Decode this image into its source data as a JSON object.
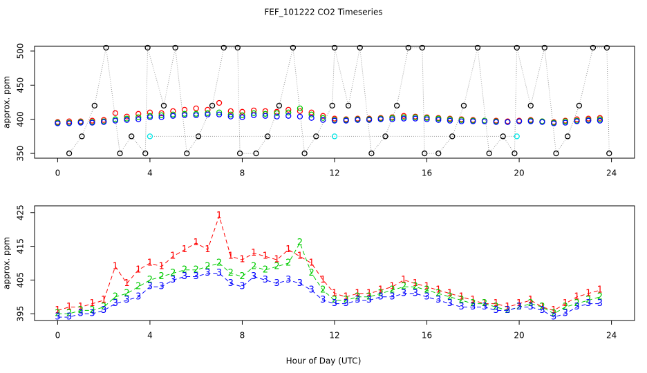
{
  "chart_data": [
    {
      "type": "scatter",
      "title": "FEF_101222  CO2 Timeseries",
      "ylabel": "approx. ppm",
      "xlim": [
        -1,
        25
      ],
      "ylim": [
        343,
        507
      ],
      "xticks": [
        0,
        4,
        8,
        12,
        16,
        20,
        24
      ],
      "yticks": [
        350,
        400,
        450,
        500
      ],
      "x": [
        0,
        0.5,
        1,
        1.5,
        2,
        2.5,
        3,
        3.5,
        4,
        4.5,
        5,
        5.5,
        6,
        6.5,
        7,
        7.5,
        8,
        8.5,
        9,
        9.5,
        10,
        10.5,
        11,
        11.5,
        12,
        12.5,
        13,
        13.5,
        14,
        14.5,
        15,
        15.5,
        16,
        16.5,
        17,
        17.5,
        18,
        18.5,
        19,
        19.5,
        20,
        20.5,
        21,
        21.5,
        22,
        22.5,
        23,
        23.5
      ],
      "series": [
        {
          "color": "#ff0000",
          "values": [
            396,
            397,
            397,
            398,
            399,
            409,
            404,
            408,
            410,
            409,
            412,
            414,
            416,
            414,
            424,
            412,
            411,
            413,
            412,
            411,
            414,
            412,
            410,
            405,
            401,
            400,
            401,
            401,
            402,
            403,
            405,
            404,
            403,
            402,
            401,
            400,
            399,
            398,
            398,
            397,
            398,
            399,
            397,
            396,
            398,
            400,
            401,
            402
          ]
        },
        {
          "color": "#00cc00",
          "values": [
            395,
            395,
            396,
            396,
            397,
            400,
            401,
            403,
            405,
            406,
            407,
            408,
            408,
            409,
            410,
            407,
            406,
            409,
            408,
            409,
            410,
            416,
            407,
            402,
            399,
            399,
            400,
            400,
            401,
            402,
            403,
            403,
            402,
            401,
            400,
            399,
            398,
            398,
            397,
            396,
            397,
            398,
            397,
            395,
            397,
            398,
            399,
            400
          ]
        },
        {
          "color": "#0000ff",
          "values": [
            394,
            394,
            395,
            395,
            396,
            398,
            399,
            400,
            403,
            403,
            405,
            406,
            406,
            407,
            407,
            404,
            403,
            406,
            405,
            404,
            405,
            404,
            402,
            399,
            398,
            398,
            399,
            399,
            400,
            400,
            401,
            401,
            400,
            399,
            398,
            397,
            397,
            397,
            396,
            396,
            397,
            397,
            396,
            394,
            395,
            397,
            398,
            398
          ]
        },
        {
          "color": "#000000",
          "x": [
            0.5,
            1.05,
            1.6,
            2.1,
            2.7,
            3.2,
            3.8,
            3.9,
            4.6,
            5.1,
            5.6,
            6.1,
            6.7,
            7.2,
            7.8,
            7.9,
            8.6,
            9.1,
            9.6,
            10.2,
            10.7,
            11.2,
            11.9,
            12,
            12.6,
            13.1,
            13.6,
            14.2,
            14.7,
            15.2,
            15.8,
            15.9,
            16.5,
            17.1,
            17.6,
            18.2,
            18.7,
            19.3,
            19.8,
            19.9,
            20.5,
            21.1,
            21.6,
            22.1,
            22.6,
            23.2,
            23.8,
            23.9
          ],
          "values": [
            350,
            375,
            420,
            505,
            350,
            375,
            350,
            505,
            420,
            505,
            350,
            375,
            420,
            505,
            505,
            350,
            350,
            375,
            420,
            505,
            350,
            375,
            420,
            505,
            420,
            505,
            350,
            375,
            420,
            505,
            505,
            350,
            350,
            375,
            420,
            505,
            350,
            375,
            350,
            505,
            420,
            505,
            350,
            375,
            420,
            505,
            505,
            350
          ]
        },
        {
          "color": "#00e5e5",
          "x": [
            4,
            12,
            19.9
          ],
          "values": [
            375,
            375,
            375
          ]
        }
      ]
    },
    {
      "type": "line",
      "ylabel": "approx. ppm",
      "xlabel": "Hour of Day (UTC)",
      "xlim": [
        -1,
        25
      ],
      "ylim": [
        393,
        427
      ],
      "xticks": [
        0,
        4,
        8,
        12,
        16,
        20,
        24
      ],
      "yticks": [
        395,
        405,
        415,
        425
      ],
      "x": [
        0,
        0.5,
        1,
        1.5,
        2,
        2.5,
        3,
        3.5,
        4,
        4.5,
        5,
        5.5,
        6,
        6.5,
        7,
        7.5,
        8,
        8.5,
        9,
        9.5,
        10,
        10.5,
        11,
        11.5,
        12,
        12.5,
        13,
        13.5,
        14,
        14.5,
        15,
        15.5,
        16,
        16.5,
        17,
        17.5,
        18,
        18.5,
        19,
        19.5,
        20,
        20.5,
        21,
        21.5,
        22,
        22.5,
        23,
        23.5
      ],
      "series": [
        {
          "marker": "1",
          "color": "#ff0000",
          "values": [
            396,
            397,
            397,
            398,
            399,
            409,
            404,
            408,
            410,
            409,
            412,
            414,
            416,
            414,
            424,
            412,
            411,
            413,
            412,
            411,
            414,
            412,
            410,
            405,
            401,
            400,
            401,
            401,
            402,
            403,
            405,
            404,
            403,
            402,
            401,
            400,
            399,
            398,
            398,
            397,
            398,
            399,
            397,
            396,
            398,
            400,
            401,
            402
          ]
        },
        {
          "marker": "2",
          "color": "#00cc00",
          "values": [
            395,
            395,
            396,
            396,
            397,
            400,
            401,
            403,
            405,
            406,
            407,
            408,
            408,
            409,
            410,
            407,
            406,
            409,
            408,
            409,
            410,
            416,
            407,
            402,
            399,
            399,
            400,
            400,
            401,
            402,
            403,
            403,
            402,
            401,
            400,
            399,
            398,
            398,
            397,
            396,
            397,
            398,
            397,
            395,
            397,
            398,
            399,
            400
          ]
        },
        {
          "marker": "3",
          "color": "#0000ff",
          "values": [
            394,
            394,
            395,
            395,
            396,
            398,
            399,
            400,
            403,
            403,
            405,
            406,
            406,
            407,
            407,
            404,
            403,
            406,
            405,
            404,
            405,
            404,
            402,
            399,
            398,
            398,
            399,
            399,
            400,
            400,
            401,
            401,
            400,
            399,
            398,
            397,
            397,
            397,
            396,
            396,
            397,
            397,
            396,
            394,
            395,
            397,
            398,
            398
          ]
        }
      ]
    }
  ]
}
